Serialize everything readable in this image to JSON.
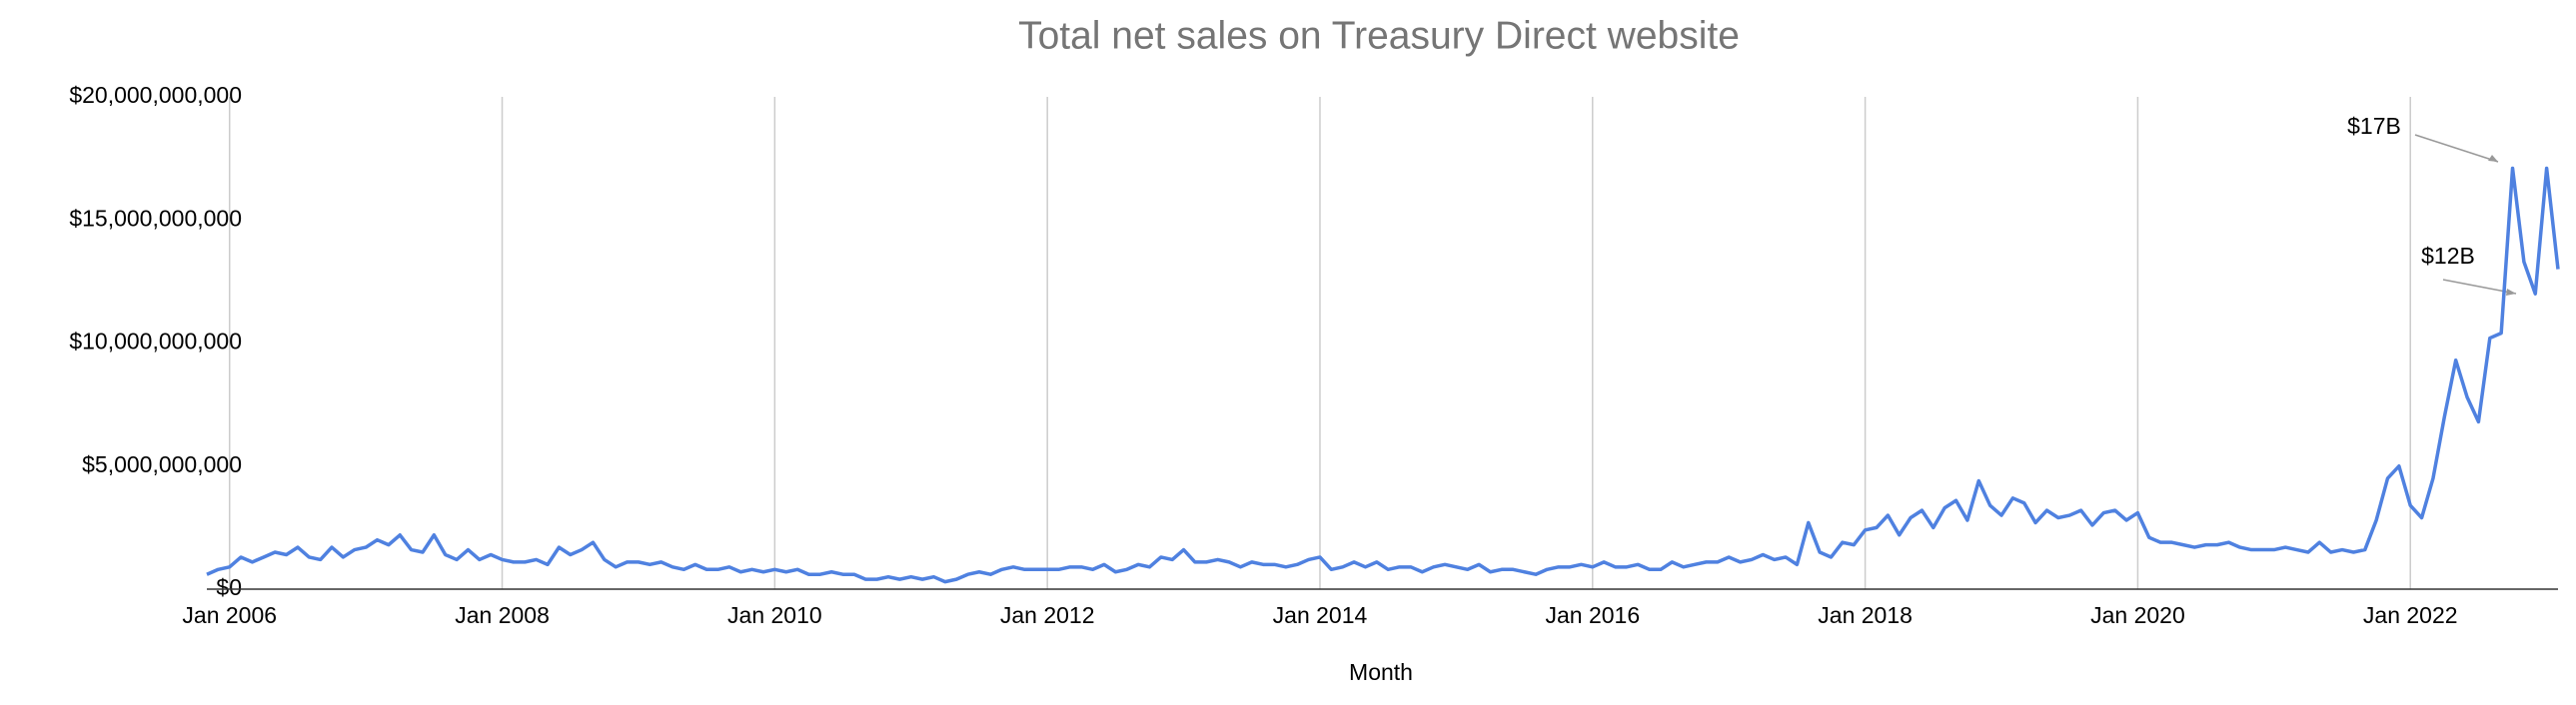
{
  "chart_data": {
    "type": "line",
    "title": "Total net sales on Treasury Direct website",
    "x_label": "Month",
    "x": [
      "2005-11",
      "2005-12",
      "2006-01",
      "2006-02",
      "2006-03",
      "2006-04",
      "2006-05",
      "2006-06",
      "2006-07",
      "2006-08",
      "2006-09",
      "2006-10",
      "2006-11",
      "2006-12",
      "2007-01",
      "2007-02",
      "2007-03",
      "2007-04",
      "2007-05",
      "2007-06",
      "2007-07",
      "2007-08",
      "2007-09",
      "2007-10",
      "2007-11",
      "2007-12",
      "2008-01",
      "2008-02",
      "2008-03",
      "2008-04",
      "2008-05",
      "2008-06",
      "2008-07",
      "2008-08",
      "2008-09",
      "2008-10",
      "2008-11",
      "2008-12",
      "2009-01",
      "2009-02",
      "2009-03",
      "2009-04",
      "2009-05",
      "2009-06",
      "2009-07",
      "2009-08",
      "2009-09",
      "2009-10",
      "2009-11",
      "2009-12",
      "2010-01",
      "2010-02",
      "2010-03",
      "2010-04",
      "2010-05",
      "2010-06",
      "2010-07",
      "2010-08",
      "2010-09",
      "2010-10",
      "2010-11",
      "2010-12",
      "2011-01",
      "2011-02",
      "2011-03",
      "2011-04",
      "2011-05",
      "2011-06",
      "2011-07",
      "2011-08",
      "2011-09",
      "2011-10",
      "2011-11",
      "2011-12",
      "2012-01",
      "2012-02",
      "2012-03",
      "2012-04",
      "2012-05",
      "2012-06",
      "2012-07",
      "2012-08",
      "2012-09",
      "2012-10",
      "2012-11",
      "2012-12",
      "2013-01",
      "2013-02",
      "2013-03",
      "2013-04",
      "2013-05",
      "2013-06",
      "2013-07",
      "2013-08",
      "2013-09",
      "2013-10",
      "2013-11",
      "2013-12",
      "2014-01",
      "2014-02",
      "2014-03",
      "2014-04",
      "2014-05",
      "2014-06",
      "2014-07",
      "2014-08",
      "2014-09",
      "2014-10",
      "2014-11",
      "2014-12",
      "2015-01",
      "2015-02",
      "2015-03",
      "2015-04",
      "2015-05",
      "2015-06",
      "2015-07",
      "2015-08",
      "2015-09",
      "2015-10",
      "2015-11",
      "2015-12",
      "2016-01",
      "2016-02",
      "2016-03",
      "2016-04",
      "2016-05",
      "2016-06",
      "2016-07",
      "2016-08",
      "2016-09",
      "2016-10",
      "2016-11",
      "2016-12",
      "2017-01",
      "2017-02",
      "2017-03",
      "2017-04",
      "2017-05",
      "2017-06",
      "2017-07",
      "2017-08",
      "2017-09",
      "2017-10",
      "2017-11",
      "2017-12",
      "2018-01",
      "2018-02",
      "2018-03",
      "2018-04",
      "2018-05",
      "2018-06",
      "2018-07",
      "2018-08",
      "2018-09",
      "2018-10",
      "2018-11",
      "2018-12",
      "2019-01",
      "2019-02",
      "2019-03",
      "2019-04",
      "2019-05",
      "2019-06",
      "2019-07",
      "2019-08",
      "2019-09",
      "2019-10",
      "2019-11",
      "2019-12",
      "2020-01",
      "2020-02",
      "2020-03",
      "2020-04",
      "2020-05",
      "2020-06",
      "2020-07",
      "2020-08",
      "2020-09",
      "2020-10",
      "2020-11",
      "2020-12",
      "2021-01",
      "2021-02",
      "2021-03",
      "2021-04",
      "2021-05",
      "2021-06",
      "2021-07",
      "2021-08",
      "2021-09",
      "2021-10",
      "2021-11",
      "2021-12",
      "2022-01",
      "2022-02",
      "2022-03",
      "2022-04",
      "2022-05",
      "2022-06",
      "2022-07",
      "2022-08",
      "2022-09",
      "2022-10",
      "2022-11",
      "2022-12",
      "2023-01",
      "2023-02"
    ],
    "series": [
      {
        "name": "Total net sales",
        "color": "#4f81e0",
        "values": [
          600000000.0,
          800000000.0,
          900000000.0,
          1300000000.0,
          1100000000.0,
          1300000000.0,
          1500000000.0,
          1400000000.0,
          1700000000.0,
          1300000000.0,
          1200000000.0,
          1700000000.0,
          1300000000.0,
          1600000000.0,
          1700000000.0,
          2000000000.0,
          1800000000.0,
          2200000000.0,
          1600000000.0,
          1500000000.0,
          2200000000.0,
          1400000000.0,
          1200000000.0,
          1600000000.0,
          1200000000.0,
          1400000000.0,
          1200000000.0,
          1100000000.0,
          1100000000.0,
          1200000000.0,
          1000000000.0,
          1700000000.0,
          1400000000.0,
          1600000000.0,
          1900000000.0,
          1200000000.0,
          900000000.0,
          1100000000.0,
          1100000000.0,
          1000000000.0,
          1100000000.0,
          900000000.0,
          800000000.0,
          1000000000.0,
          800000000.0,
          800000000.0,
          900000000.0,
          700000000.0,
          800000000.0,
          700000000.0,
          800000000.0,
          700000000.0,
          800000000.0,
          600000000.0,
          600000000.0,
          700000000.0,
          600000000.0,
          600000000.0,
          400000000.0,
          400000000.0,
          500000000.0,
          400000000.0,
          500000000.0,
          400000000.0,
          500000000.0,
          300000000.0,
          400000000.0,
          600000000.0,
          700000000.0,
          600000000.0,
          800000000.0,
          900000000.0,
          800000000.0,
          800000000.0,
          800000000.0,
          800000000.0,
          900000000.0,
          900000000.0,
          800000000.0,
          1000000000.0,
          700000000.0,
          800000000.0,
          1000000000.0,
          900000000.0,
          1300000000.0,
          1200000000.0,
          1600000000.0,
          1100000000.0,
          1100000000.0,
          1200000000.0,
          1100000000.0,
          900000000.0,
          1100000000.0,
          1000000000.0,
          1000000000.0,
          900000000.0,
          1000000000.0,
          1200000000.0,
          1300000000.0,
          800000000.0,
          900000000.0,
          1100000000.0,
          900000000.0,
          1100000000.0,
          800000000.0,
          900000000.0,
          900000000.0,
          700000000.0,
          900000000.0,
          1000000000.0,
          900000000.0,
          800000000.0,
          1000000000.0,
          700000000.0,
          800000000.0,
          800000000.0,
          700000000.0,
          600000000.0,
          800000000.0,
          900000000.0,
          900000000.0,
          1000000000.0,
          900000000.0,
          1100000000.0,
          900000000.0,
          900000000.0,
          1000000000.0,
          800000000.0,
          800000000.0,
          1100000000.0,
          900000000.0,
          1000000000.0,
          1100000000.0,
          1100000000.0,
          1300000000.0,
          1100000000.0,
          1200000000.0,
          1400000000.0,
          1200000000.0,
          1300000000.0,
          1000000000.0,
          2700000000.0,
          1500000000.0,
          1300000000.0,
          1900000000.0,
          1800000000.0,
          2400000000.0,
          2500000000.0,
          3000000000.0,
          2200000000.0,
          2900000000.0,
          3200000000.0,
          2500000000.0,
          3300000000.0,
          3600000000.0,
          2800000000.0,
          4400000000.0,
          3400000000.0,
          3000000000.0,
          3700000000.0,
          3500000000.0,
          2700000000.0,
          3200000000.0,
          2900000000.0,
          3000000000.0,
          3200000000.0,
          2600000000.0,
          3100000000.0,
          3200000000.0,
          2800000000.0,
          3100000000.0,
          2100000000.0,
          1900000000.0,
          1900000000.0,
          1800000000.0,
          1700000000.0,
          1800000000.0,
          1800000000.0,
          1900000000.0,
          1700000000.0,
          1600000000.0,
          1600000000.0,
          1600000000.0,
          1700000000.0,
          1600000000.0,
          1500000000.0,
          1900000000.0,
          1500000000.0,
          1600000000.0,
          1500000000.0,
          1600000000.0,
          2800000000.0,
          4500000000.0,
          5000000000.0,
          3400000000.0,
          2900000000.0,
          4500000000.0,
          7000000000.0,
          9300000000.0,
          7800000000.0,
          6800000000.0,
          10200000000.0,
          10400000000.0,
          17100000000.0,
          13300000000.0,
          12000000000.0,
          17100000000.0,
          13000000000.0
        ]
      }
    ],
    "xlim": [
      "2005-11",
      "2023-02"
    ],
    "xticks": [
      {
        "value": "2006-01",
        "label": "Jan 2006"
      },
      {
        "value": "2008-01",
        "label": "Jan 2008"
      },
      {
        "value": "2010-01",
        "label": "Jan 2010"
      },
      {
        "value": "2012-01",
        "label": "Jan 2012"
      },
      {
        "value": "2014-01",
        "label": "Jan 2014"
      },
      {
        "value": "2016-01",
        "label": "Jan 2016"
      },
      {
        "value": "2018-01",
        "label": "Jan 2018"
      },
      {
        "value": "2020-01",
        "label": "Jan 2020"
      },
      {
        "value": "2022-01",
        "label": "Jan 2022"
      }
    ],
    "ylim": [
      0,
      20000000000
    ],
    "yticks": [
      {
        "value": 0,
        "label": "$0"
      },
      {
        "value": 5000000000,
        "label": "$5,000,000,000"
      },
      {
        "value": 10000000000,
        "label": "$10,000,000,000"
      },
      {
        "value": 15000000000,
        "label": "$15,000,000,000"
      },
      {
        "value": 20000000000,
        "label": "$20,000,000,000"
      }
    ],
    "grid": "x",
    "annotations": [
      "$17B",
      "$12B"
    ]
  }
}
